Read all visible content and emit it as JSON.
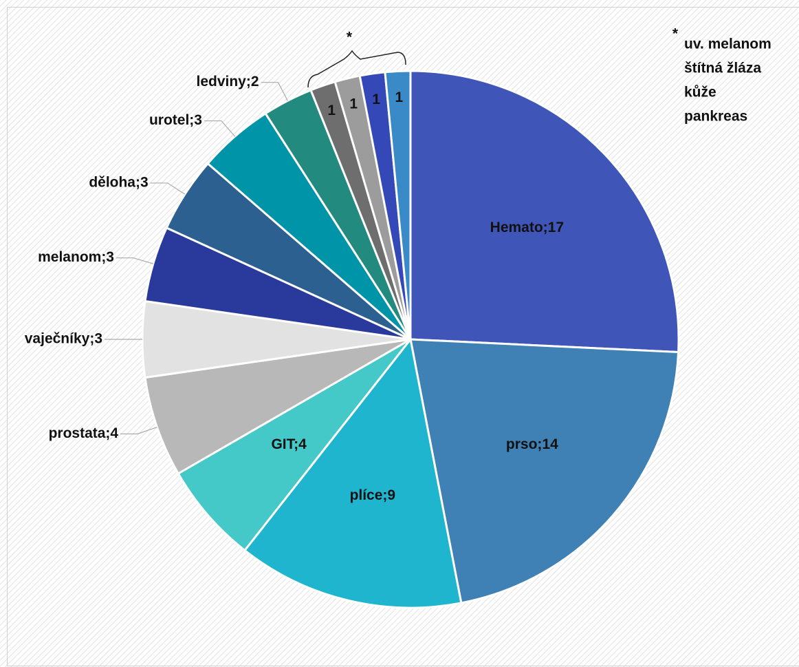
{
  "chart_data": {
    "type": "pie",
    "categories": [
      "Hemato",
      "prso",
      "plíce",
      "GIT",
      "prostata",
      "vaječníky",
      "melanom",
      "děloha",
      "urotel",
      "ledviny",
      "uv. melanom",
      "štítná žláza",
      "kůže",
      "pankreas"
    ],
    "values": [
      17,
      14,
      9,
      4,
      4,
      3,
      3,
      3,
      3,
      2,
      1,
      1,
      1,
      1
    ],
    "value_labels": [
      "Hemato;17",
      "prso;14",
      "plíce;9",
      "GIT;4",
      "prostata;4",
      "vaječníky;3",
      "melanom;3",
      "děloha;3",
      "urotel;3",
      "ledviny;2",
      "1",
      "1",
      "1",
      "1"
    ],
    "colors": [
      "#3f55b8",
      "#3f80b5",
      "#1fb5cf",
      "#45c8c8",
      "#b8b8b8",
      "#e2e2e2",
      "#2a3a9c",
      "#2c6090",
      "#0094a8",
      "#238a80",
      "#6e6e6e",
      "#9c9c9c",
      "#3448b8",
      "#3a8ac8"
    ],
    "annotations": [
      "*",
      "*"
    ]
  }
}
